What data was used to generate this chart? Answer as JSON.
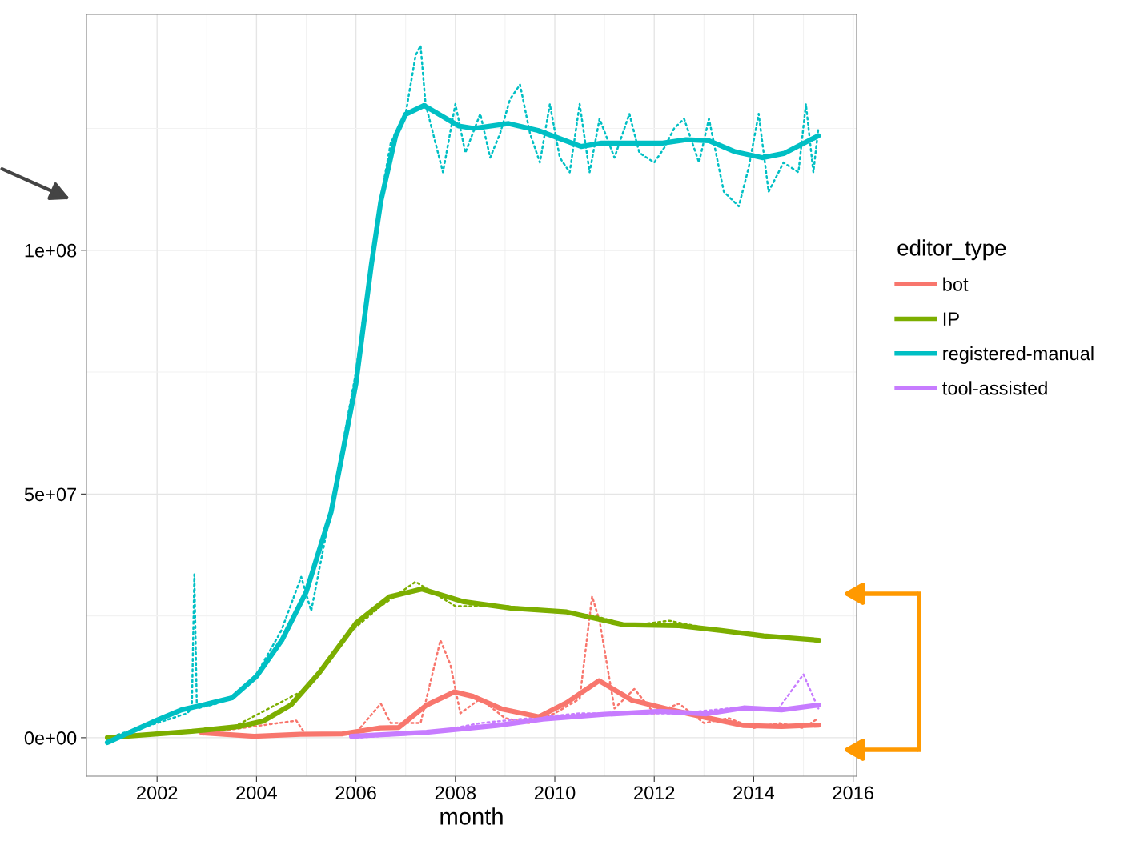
{
  "chart_data": {
    "type": "line",
    "xlabel": "month",
    "legend_title": "editor_type",
    "legend": "right",
    "grid": true,
    "xlim": [
      2000.58,
      2016.07
    ],
    "xticks": [
      2002,
      2004,
      2006,
      2008,
      2010,
      2012,
      2014,
      2016
    ],
    "ylim": [
      -7900000.0,
      148400000.0
    ],
    "yticks": [
      {
        "value": 0,
        "label": "0e+00"
      },
      {
        "value": 50000000.0,
        "label": "5e+07"
      },
      {
        "value": 100000000.0,
        "label": "1e+08"
      }
    ],
    "series": [
      {
        "color": "#00bfc4",
        "line_style": "dotted",
        "x": [
          2001.0,
          2002.0,
          2002.6,
          2002.7,
          2002.75,
          2002.8,
          2003.2,
          2003.6,
          2004.0,
          2004.5,
          2004.9,
          2005.1,
          2005.5,
          2006.0,
          2006.4,
          2006.7,
          2007.0,
          2007.2,
          2007.3,
          2007.4,
          2007.6,
          2007.75,
          2008.0,
          2008.2,
          2008.5,
          2008.7,
          2008.9,
          2009.1,
          2009.3,
          2009.5,
          2009.7,
          2009.9,
          2010.1,
          2010.3,
          2010.5,
          2010.7,
          2010.9,
          2011.2,
          2011.5,
          2011.7,
          2012.0,
          2012.2,
          2012.4,
          2012.6,
          2012.9,
          2013.1,
          2013.4,
          2013.7,
          2013.9,
          2014.1,
          2014.3,
          2014.6,
          2014.9,
          2015.05,
          2015.2,
          2015.3
        ],
        "values": [
          0,
          3000000.0,
          5000000.0,
          6000000.0,
          33500000.0,
          6000000.0,
          7000000.0,
          9000000.0,
          13000000.0,
          22000000.0,
          33000000.0,
          26000000.0,
          47000000.0,
          75000000.0,
          105000000.0,
          122000000.0,
          128000000.0,
          140000000.0,
          142000000.0,
          130000000.0,
          122000000.0,
          116000000.0,
          130000000.0,
          120000000.0,
          128000000.0,
          119000000.0,
          124000000.0,
          131000000.0,
          134000000.0,
          124000000.0,
          118000000.0,
          130000000.0,
          119000000.0,
          116000000.0,
          130000000.0,
          116000000.0,
          127000000.0,
          119000000.0,
          128000000.0,
          120000000.0,
          118000000.0,
          121000000.0,
          125000000.0,
          127000000.0,
          118000000.0,
          127000000.0,
          112000000.0,
          109000000.0,
          117000000.0,
          128000000.0,
          112000000.0,
          118000000.0,
          116000000.0,
          130000000.0,
          116000000.0,
          125000000.0
        ]
      },
      {
        "color": "#f8766d",
        "line_style": "dotted",
        "x": [
          2003.0,
          2004.8,
          2005.0,
          2006.0,
          2006.5,
          2006.7,
          2007.3,
          2007.7,
          2007.9,
          2008.1,
          2008.5,
          2009.0,
          2009.5,
          2010.0,
          2010.5,
          2010.75,
          2010.9,
          2011.2,
          2011.6,
          2012.0,
          2012.5,
          2013.0,
          2013.5,
          2014.0,
          2014.5,
          2015.0,
          2015.3
        ],
        "values": [
          1000000.0,
          3500000.0,
          500000.0,
          1000000.0,
          7000000.0,
          3000000.0,
          3000000.0,
          20000000.0,
          15000000.0,
          5000000.0,
          8000000.0,
          4000000.0,
          3000000.0,
          5000000.0,
          8000000.0,
          29000000.0,
          24000000.0,
          6000000.0,
          10000000.0,
          5000000.0,
          7000000.0,
          3000000.0,
          4000000.0,
          2000000.0,
          3000000.0,
          2000000.0,
          4000000.0
        ]
      },
      {
        "color": "#7cae00",
        "line_style": "dotted",
        "x": [
          2001.0,
          2002.0,
          2003.5,
          2005.0,
          2005.8,
          2006.5,
          2007.2,
          2008.0,
          2009.0,
          2010.0,
          2010.8,
          2011.5,
          2012.3,
          2013.3,
          2014.2,
          2015.3
        ],
        "values": [
          0,
          1000000.0,
          2000000.0,
          10000000.0,
          21000000.0,
          27000000.0,
          32000000.0,
          27000000.0,
          27000000.0,
          26000000.0,
          25000000.0,
          23000000.0,
          24000000.0,
          22000000.0,
          21000000.0,
          20000000.0
        ]
      },
      {
        "color": "#c77cff",
        "line_style": "dotted",
        "x": [
          2006.0,
          2007.5,
          2008.5,
          2009.5,
          2010.5,
          2011.5,
          2012.5,
          2013.5,
          2014.5,
          2015.0,
          2015.3
        ],
        "values": [
          0,
          1000000.0,
          3000000.0,
          4000000.0,
          5000000.0,
          5000000.0,
          5000000.0,
          6000000.0,
          6000000.0,
          13000000.0,
          6000000.0
        ]
      },
      {
        "name": "bot",
        "color": "#f8766d",
        "line_style": "solid",
        "x": [
          2002.9,
          2003.95,
          2004.88,
          2005.73,
          2006.49,
          2006.86,
          2007.42,
          2007.98,
          2008.35,
          2008.93,
          2009.68,
          2010.24,
          2010.89,
          2011.55,
          2012.3,
          2013.05,
          2013.8,
          2014.56,
          2015.31
        ],
        "values": [
          1000000.0,
          300000.0,
          700000.0,
          800000.0,
          2000000.0,
          2100000.0,
          6700000.0,
          9400000.0,
          8500000.0,
          5900000.0,
          4300000.0,
          7200000.0,
          11700000.0,
          7700000.0,
          5800000.0,
          4100000.0,
          2500000.0,
          2300000.0,
          2600000.0
        ]
      },
      {
        "name": "IP",
        "color": "#7cae00",
        "line_style": "solid",
        "x": [
          2001.0,
          2002.7,
          2003.65,
          2004.13,
          2004.69,
          2005.26,
          2006.01,
          2006.67,
          2007.32,
          2008.17,
          2009.11,
          2010.24,
          2011.37,
          2012.5,
          2013.35,
          2014.2,
          2015.31
        ],
        "values": [
          0,
          1300000.0,
          2300000.0,
          3400000.0,
          6700000.0,
          13300000.0,
          23600000.0,
          28900000.0,
          30500000.0,
          27900000.0,
          26600000.0,
          25800000.0,
          23200000.0,
          23000000.0,
          22000000.0,
          20900000.0,
          20000000.0
        ]
      },
      {
        "name": "registered-manual",
        "color": "#00bfc4",
        "line_style": "solid",
        "x": [
          2001.0,
          2002.0,
          2002.49,
          2003.0,
          2003.51,
          2004.0,
          2004.51,
          2005.0,
          2005.5,
          2006.0,
          2006.31,
          2006.5,
          2006.8,
          2007.0,
          2007.37,
          2008.07,
          2008.37,
          2009.07,
          2009.66,
          2010.53,
          2010.94,
          2012.17,
          2012.64,
          2013.1,
          2013.63,
          2014.17,
          2014.62,
          2015.3
        ],
        "values": [
          -1000000.0,
          3600000.0,
          5700000.0,
          6900000.0,
          8200000.0,
          12600000.0,
          20000000.0,
          29900000.0,
          46300000.0,
          72600000.0,
          97000000.0,
          110000000.0,
          123500000.0,
          127900000.0,
          129700000.0,
          125500000.0,
          125000000.0,
          126000000.0,
          124600000.0,
          121300000.0,
          122000000.0,
          122000000.0,
          122700000.0,
          122500000.0,
          120200000.0,
          119000000.0,
          119900000.0,
          123500000.0
        ]
      },
      {
        "name": "tool-assisted",
        "color": "#c77cff",
        "line_style": "solid",
        "x": [
          2005.91,
          2007.42,
          2008.83,
          2009.76,
          2011.0,
          2012.12,
          2013.05,
          2013.8,
          2014.56,
          2015.31
        ],
        "values": [
          300000.0,
          1100000.0,
          2500000.0,
          3800000.0,
          4800000.0,
          5400000.0,
          4900000.0,
          6100000.0,
          5700000.0,
          6700000.0
        ]
      }
    ]
  }
}
